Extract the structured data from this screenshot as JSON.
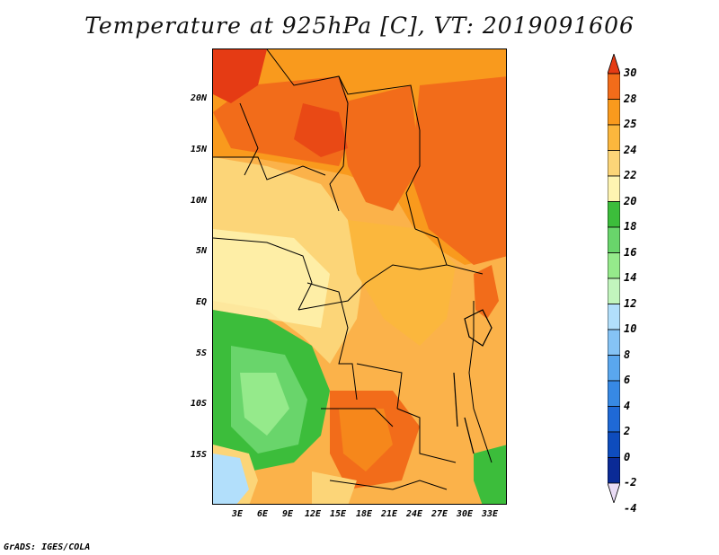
{
  "title": "Temperature at 925hPa [C], VT: 2019091606",
  "footer": "GrADS: IGES/COLA",
  "y_axis_labels": [
    "20N",
    "15N",
    "10N",
    "5N",
    "EQ",
    "5S",
    "10S",
    "15S"
  ],
  "x_axis_labels": [
    "3E",
    "6E",
    "9E",
    "12E",
    "15E",
    "18E",
    "21E",
    "24E",
    "27E",
    "30E",
    "33E"
  ],
  "colorbar": {
    "labels": [
      "30",
      "28",
      "25",
      "24",
      "22",
      "20",
      "18",
      "16",
      "14",
      "12",
      "10",
      "8",
      "6",
      "4",
      "2",
      "0",
      "-2",
      "-4"
    ],
    "colors": [
      "#e53b14",
      "#f26c1a",
      "#f99a1d",
      "#fbb73d",
      "#fcd578",
      "#fef4b2",
      "#3cbd3b",
      "#69d56b",
      "#95ea8b",
      "#c2f5bd",
      "#b2dffb",
      "#85c3f5",
      "#5aa7ee",
      "#3789e4",
      "#1f69d6",
      "#0e4cbd",
      "#0a2a96",
      "#eadcf5"
    ]
  }
}
